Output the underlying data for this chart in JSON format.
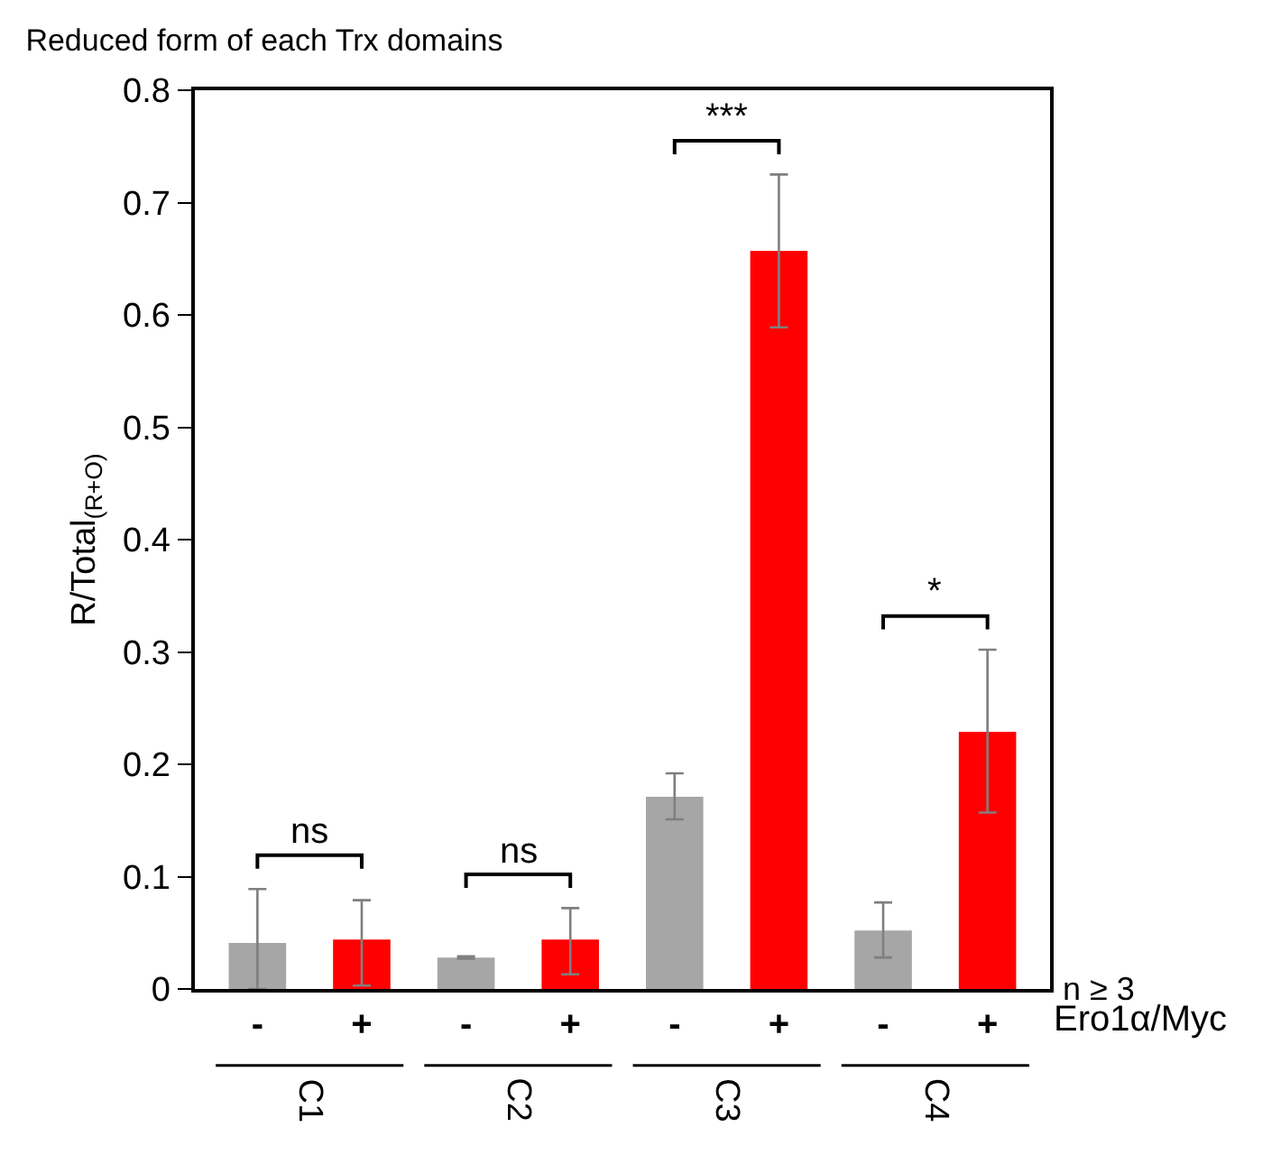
{
  "chart_data": {
    "type": "bar",
    "title": "Reduced form of each Trx domains",
    "ylabel": "R/Total$_{(R+O)}$",
    "categories": [
      "-",
      "+",
      "-",
      "+",
      "-",
      "+",
      "-",
      "+"
    ],
    "values": [
      0.041,
      0.044,
      0.028,
      0.044,
      0.171,
      0.657,
      0.052,
      0.229
    ],
    "colors": [
      "#a6a6a6",
      "#ff0000",
      "#a6a6a6",
      "#ff0000",
      "#a6a6a6",
      "#ff0000",
      "#a6a6a6",
      "#ff0000"
    ],
    "errors": [
      [
        0.0,
        0.089
      ],
      [
        0.003,
        0.079
      ],
      [
        0.027,
        0.029
      ],
      [
        0.013,
        0.072
      ],
      [
        0.151,
        0.192
      ],
      [
        0.589,
        0.725
      ],
      [
        0.028,
        0.077
      ],
      [
        0.157,
        0.302
      ]
    ],
    "ylim": [
      0,
      0.8
    ],
    "yticks": [
      0,
      0.1,
      0.2,
      0.3,
      0.4,
      0.5,
      0.6,
      0.7,
      0.8
    ],
    "annotations": [
      "ns",
      "ns",
      "***",
      "*",
      "C1",
      "C2",
      "C3",
      "C4",
      "n ≥ 3",
      "Ero1α/Myc"
    ],
    "legend": false
  }
}
